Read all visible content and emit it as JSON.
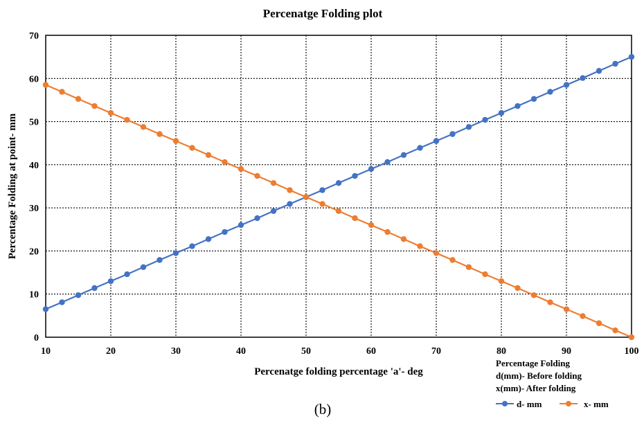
{
  "chart_data": {
    "type": "line",
    "title": "Percenatge Folding plot",
    "xlabel": "Percenatge folding percentage 'a'- deg",
    "ylabel": "Percentage Folding at point- mm",
    "xlim": [
      10,
      100
    ],
    "ylim": [
      0,
      70
    ],
    "xticks": [
      10,
      20,
      30,
      40,
      50,
      60,
      70,
      80,
      90,
      100
    ],
    "yticks": [
      0,
      10,
      20,
      30,
      40,
      50,
      60,
      70
    ],
    "grid": true,
    "x": [
      10,
      12.5,
      15,
      17.5,
      20,
      22.5,
      25,
      27.5,
      30,
      32.5,
      35,
      37.5,
      40,
      42.5,
      45,
      47.5,
      50,
      52.5,
      55,
      57.5,
      60,
      62.5,
      65,
      67.5,
      70,
      72.5,
      75,
      77.5,
      80,
      82.5,
      85,
      87.5,
      90,
      92.5,
      95,
      97.5,
      100
    ],
    "series": [
      {
        "name": "d- mm",
        "color": "#4472C4",
        "values": [
          6.5,
          8.1,
          9.75,
          11.4,
          13.0,
          14.6,
          16.25,
          17.9,
          19.5,
          21.1,
          22.75,
          24.4,
          26.0,
          27.6,
          29.25,
          30.9,
          32.5,
          34.1,
          35.75,
          37.4,
          39.0,
          40.6,
          42.25,
          43.9,
          45.5,
          47.1,
          48.75,
          50.4,
          52.0,
          53.6,
          55.25,
          56.9,
          58.5,
          60.1,
          61.75,
          63.4,
          65.0
        ]
      },
      {
        "name": "x- mm",
        "color": "#ED7D31",
        "values": [
          58.5,
          56.9,
          55.25,
          53.6,
          52.0,
          50.4,
          48.75,
          47.1,
          45.5,
          43.9,
          42.25,
          40.6,
          39.0,
          37.4,
          35.75,
          34.1,
          32.5,
          30.9,
          29.25,
          27.6,
          26.0,
          24.4,
          22.75,
          21.1,
          19.5,
          17.9,
          16.25,
          14.6,
          13.0,
          11.4,
          9.75,
          8.1,
          6.5,
          4.9,
          3.25,
          1.6,
          0.0
        ]
      }
    ],
    "legend": {
      "placement": "bottom-right",
      "title_lines": [
        "Percentage Folding",
        "d(mm)- Before folding",
        "x(mm)- After folding"
      ]
    },
    "caption": "(b)"
  }
}
